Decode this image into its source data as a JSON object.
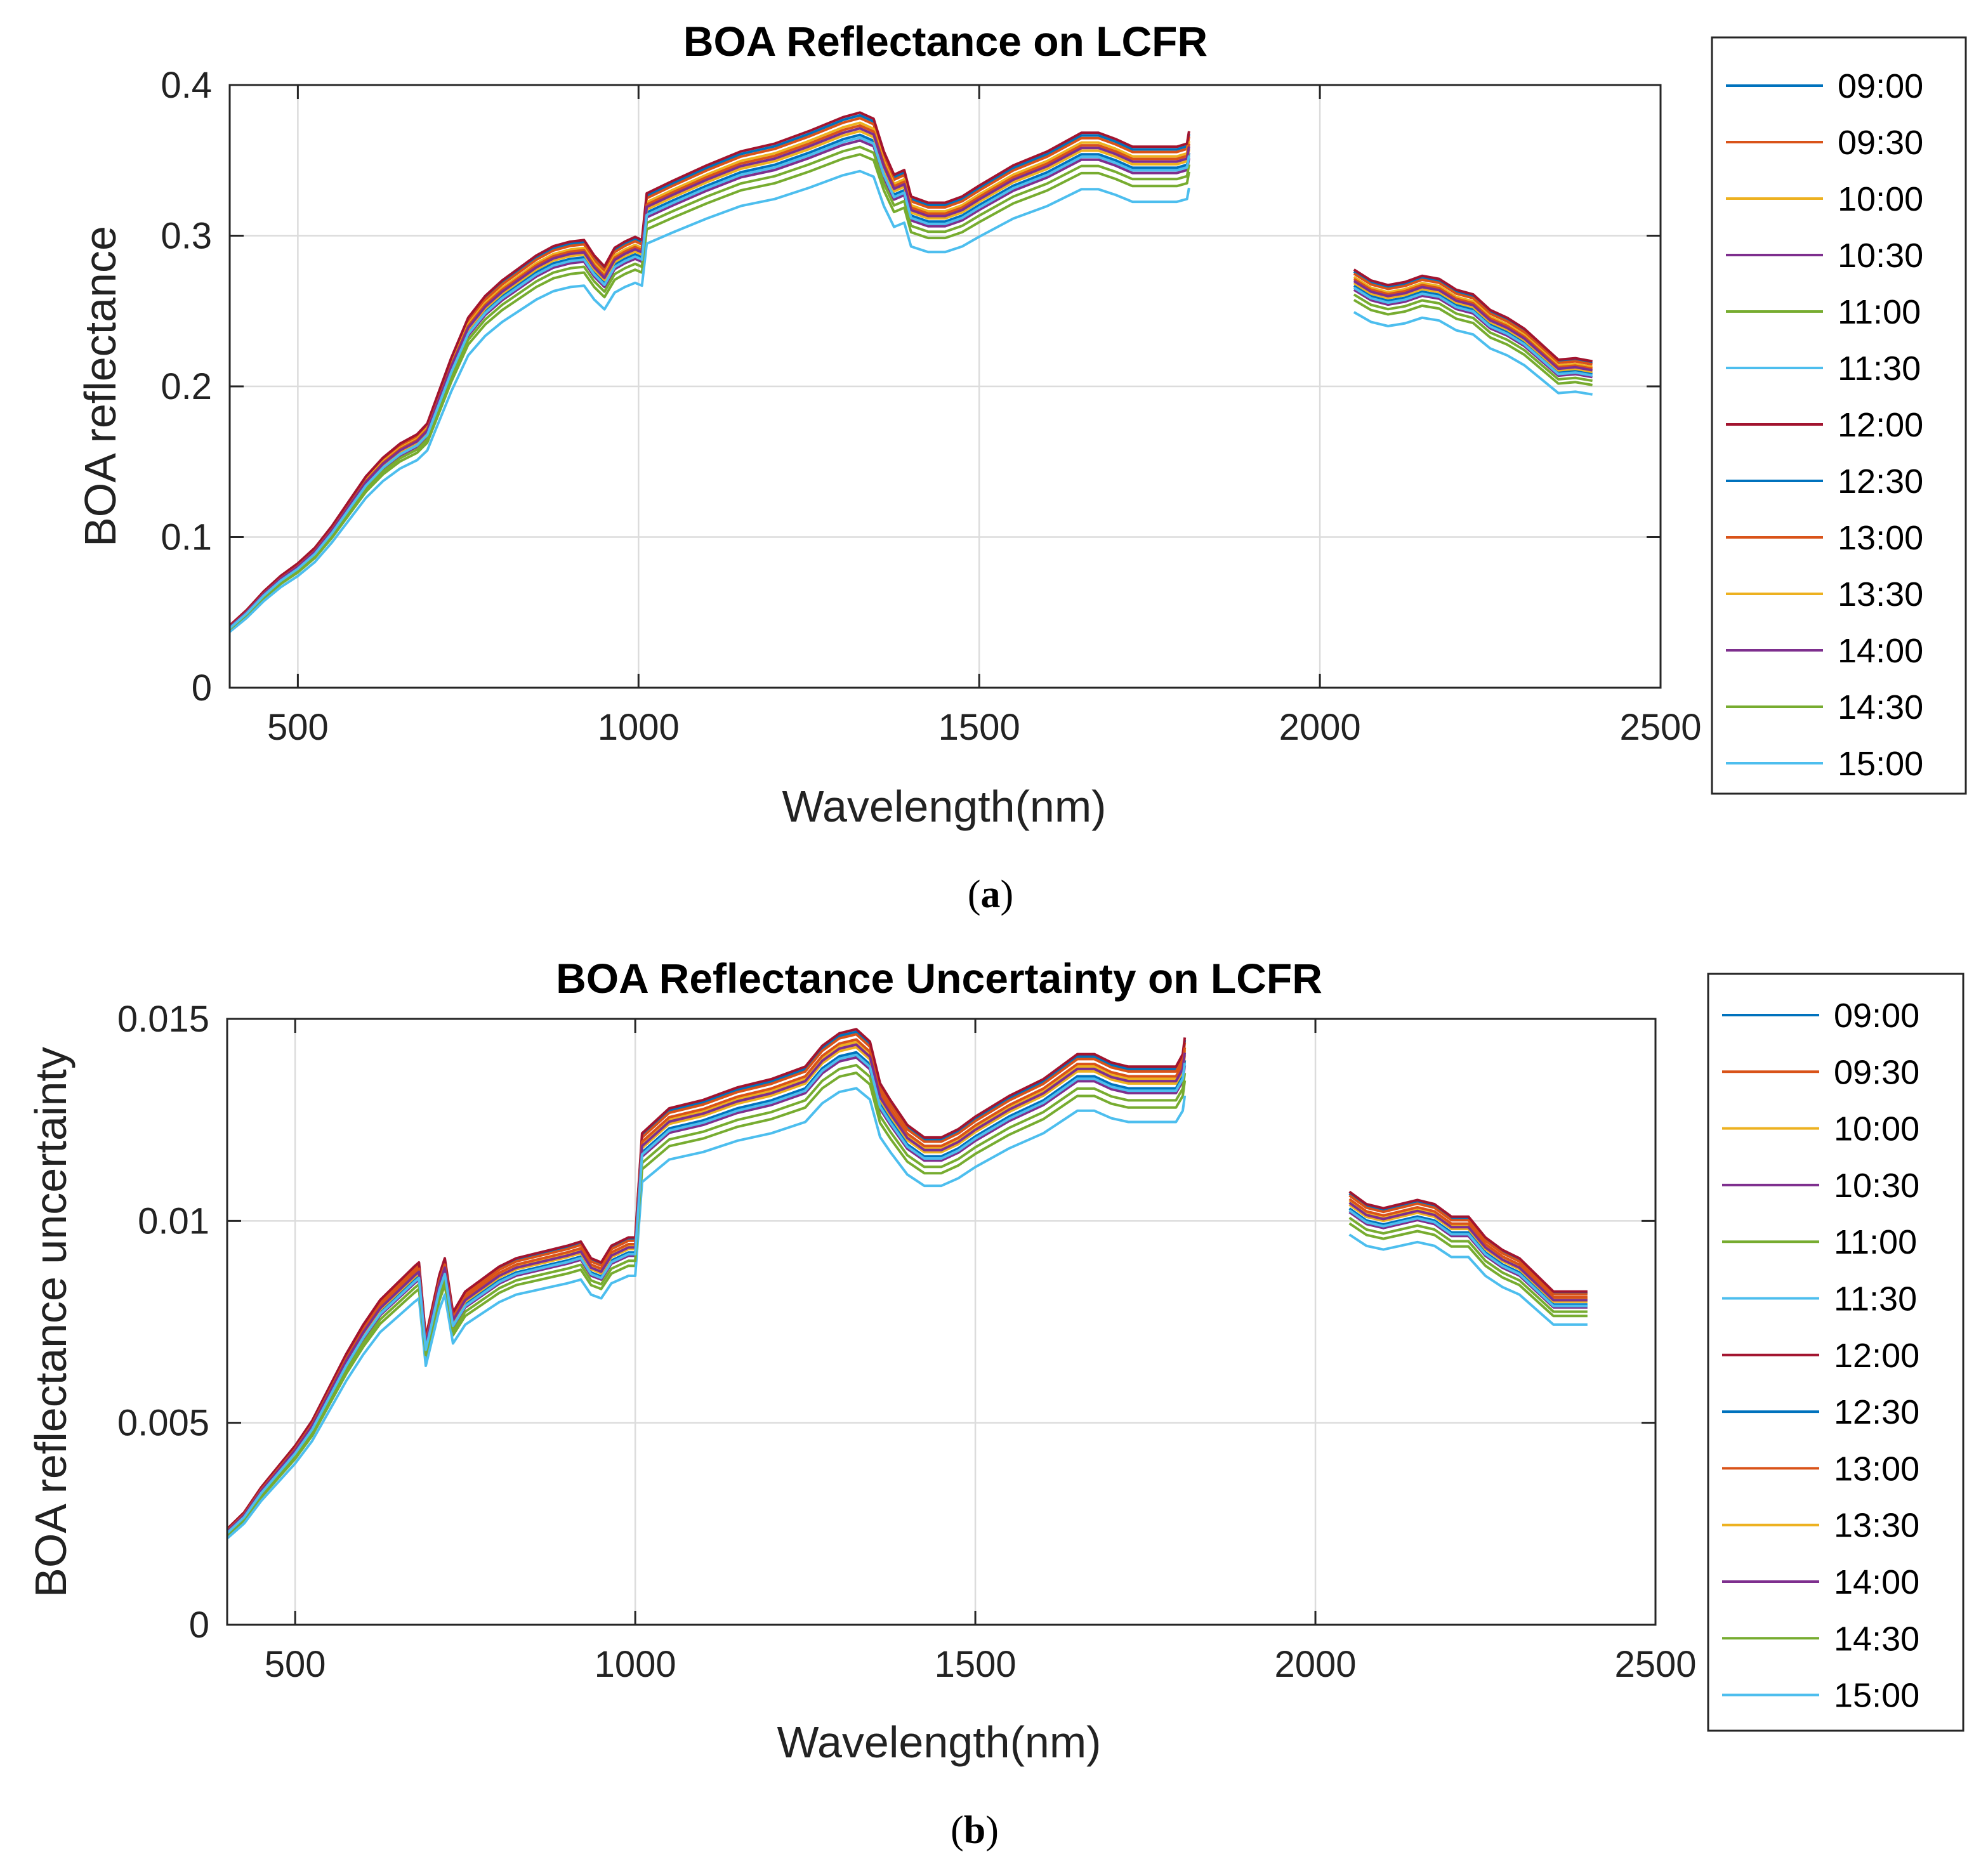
{
  "chart_data": [
    {
      "type": "line",
      "title": "BOA Reflectance on LCFR",
      "xlabel": "Wavelength(nm)",
      "ylabel": "BOA reflectance",
      "xlim": [
        400,
        2500
      ],
      "ylim": [
        0,
        0.4
      ],
      "xticks": [
        500,
        1000,
        1500,
        2000,
        2500
      ],
      "xtick_labels": [
        "500",
        "1000",
        "1500",
        "2000",
        "2500"
      ],
      "yticks": [
        0,
        0.1,
        0.2,
        0.3,
        0.4
      ],
      "ytick_labels": [
        "0",
        "0.1",
        "0.2",
        "0.3",
        "0.4"
      ],
      "grid": true,
      "legend_position": "outside-right",
      "caption_label": "a",
      "base_curve": [
        [
          400,
          0.04
        ],
        [
          425,
          0.05
        ],
        [
          450,
          0.062
        ],
        [
          475,
          0.072
        ],
        [
          500,
          0.08
        ],
        [
          525,
          0.09
        ],
        [
          550,
          0.104
        ],
        [
          575,
          0.12
        ],
        [
          600,
          0.136
        ],
        [
          625,
          0.148
        ],
        [
          650,
          0.157
        ],
        [
          675,
          0.163
        ],
        [
          690,
          0.17
        ],
        [
          700,
          0.182
        ],
        [
          725,
          0.212
        ],
        [
          750,
          0.238
        ],
        [
          775,
          0.252
        ],
        [
          800,
          0.262
        ],
        [
          825,
          0.27
        ],
        [
          850,
          0.278
        ],
        [
          875,
          0.284
        ],
        [
          900,
          0.287
        ],
        [
          920,
          0.288
        ],
        [
          935,
          0.278
        ],
        [
          950,
          0.271
        ],
        [
          965,
          0.283
        ],
        [
          980,
          0.287
        ],
        [
          995,
          0.29
        ],
        [
          1005,
          0.288
        ],
        [
          1012,
          0.318
        ],
        [
          1050,
          0.326
        ],
        [
          1100,
          0.336
        ],
        [
          1150,
          0.345
        ],
        [
          1200,
          0.35
        ],
        [
          1250,
          0.358
        ],
        [
          1300,
          0.367
        ],
        [
          1325,
          0.37
        ],
        [
          1345,
          0.366
        ],
        [
          1360,
          0.345
        ],
        [
          1375,
          0.33
        ],
        [
          1390,
          0.333
        ],
        [
          1400,
          0.316
        ],
        [
          1425,
          0.312
        ],
        [
          1450,
          0.312
        ],
        [
          1475,
          0.316
        ],
        [
          1500,
          0.323
        ],
        [
          1550,
          0.336
        ],
        [
          1600,
          0.345
        ],
        [
          1650,
          0.357
        ],
        [
          1675,
          0.357
        ],
        [
          1700,
          0.353
        ],
        [
          1725,
          0.348
        ],
        [
          1750,
          0.348
        ],
        [
          1790,
          0.348
        ],
        [
          1805,
          0.35
        ],
        [
          1808,
          0.358
        ]
      ],
      "base_curve_2": [
        [
          2050,
          0.269
        ],
        [
          2075,
          0.262
        ],
        [
          2100,
          0.259
        ],
        [
          2125,
          0.261
        ],
        [
          2150,
          0.265
        ],
        [
          2175,
          0.263
        ],
        [
          2200,
          0.256
        ],
        [
          2225,
          0.253
        ],
        [
          2250,
          0.243
        ],
        [
          2275,
          0.238
        ],
        [
          2300,
          0.231
        ],
        [
          2325,
          0.221
        ],
        [
          2350,
          0.211
        ],
        [
          2375,
          0.212
        ],
        [
          2400,
          0.21
        ]
      ],
      "series": [
        {
          "name": "09:00",
          "color": "#0072BD",
          "offset": 0.008
        },
        {
          "name": "09:30",
          "color": "#D95319",
          "offset": 0.0065
        },
        {
          "name": "10:00",
          "color": "#EDB120",
          "offset": 0.004
        },
        {
          "name": "10:30",
          "color": "#7E2F8E",
          "offset": -0.0055
        },
        {
          "name": "11:00",
          "color": "#77AC30",
          "offset": -0.013
        },
        {
          "name": "11:30",
          "color": "#4DBEEE",
          "offset": -0.022
        },
        {
          "name": "12:00",
          "color": "#A2142F",
          "offset": 0.0095
        },
        {
          "name": "12:30",
          "color": "#0072BD",
          "offset": -0.0025
        },
        {
          "name": "13:00",
          "color": "#D95319",
          "offset": 0.0025
        },
        {
          "name": "13:30",
          "color": "#EDB120",
          "offset": -0.0005
        },
        {
          "name": "14:00",
          "color": "#7E2F8E",
          "offset": 0.001
        },
        {
          "name": "14:30",
          "color": "#77AC30",
          "offset": -0.009
        },
        {
          "name": "15:00",
          "color": "#4DBEEE",
          "offset": -0.004
        }
      ]
    },
    {
      "type": "line",
      "title": "BOA Reflectance Uncertainty on LCFR",
      "xlabel": "Wavelength(nm)",
      "ylabel": "BOA reflectance uncertainty",
      "xlim": [
        400,
        2500
      ],
      "ylim": [
        0,
        0.015
      ],
      "xticks": [
        500,
        1000,
        1500,
        2000,
        2500
      ],
      "xtick_labels": [
        "500",
        "1000",
        "1500",
        "2000",
        "2500"
      ],
      "yticks": [
        0,
        0.005,
        0.01,
        0.015
      ],
      "ytick_labels": [
        "0",
        "0.005",
        "0.01",
        "0.015"
      ],
      "grid": true,
      "legend_position": "outside-right",
      "caption_label": "b",
      "base_curve": [
        [
          400,
          0.0023
        ],
        [
          425,
          0.0027
        ],
        [
          450,
          0.0033
        ],
        [
          475,
          0.0038
        ],
        [
          500,
          0.0043
        ],
        [
          525,
          0.0049
        ],
        [
          550,
          0.0057
        ],
        [
          575,
          0.0065
        ],
        [
          600,
          0.0072
        ],
        [
          625,
          0.0078
        ],
        [
          650,
          0.0082
        ],
        [
          675,
          0.0086
        ],
        [
          682,
          0.0087
        ],
        [
          692,
          0.0069
        ],
        [
          700,
          0.0075
        ],
        [
          712,
          0.0084
        ],
        [
          720,
          0.0088
        ],
        [
          732,
          0.0075
        ],
        [
          750,
          0.008
        ],
        [
          775,
          0.0083
        ],
        [
          800,
          0.0086
        ],
        [
          825,
          0.0088
        ],
        [
          850,
          0.0089
        ],
        [
          875,
          0.009
        ],
        [
          900,
          0.0091
        ],
        [
          920,
          0.0092
        ],
        [
          935,
          0.0088
        ],
        [
          950,
          0.0087
        ],
        [
          965,
          0.0091
        ],
        [
          990,
          0.0093
        ],
        [
          1000,
          0.0093
        ],
        [
          1010,
          0.0118
        ],
        [
          1050,
          0.0124
        ],
        [
          1100,
          0.0126
        ],
        [
          1150,
          0.0129
        ],
        [
          1200,
          0.0131
        ],
        [
          1250,
          0.0134
        ],
        [
          1275,
          0.0139
        ],
        [
          1300,
          0.0142
        ],
        [
          1325,
          0.0143
        ],
        [
          1345,
          0.014
        ],
        [
          1360,
          0.013
        ],
        [
          1375,
          0.0126
        ],
        [
          1400,
          0.012
        ],
        [
          1425,
          0.0117
        ],
        [
          1450,
          0.0117
        ],
        [
          1475,
          0.0119
        ],
        [
          1500,
          0.0122
        ],
        [
          1550,
          0.0127
        ],
        [
          1600,
          0.0131
        ],
        [
          1650,
          0.0137
        ],
        [
          1675,
          0.0137
        ],
        [
          1700,
          0.0135
        ],
        [
          1725,
          0.0134
        ],
        [
          1750,
          0.0134
        ],
        [
          1795,
          0.0134
        ],
        [
          1805,
          0.0137
        ],
        [
          1808,
          0.0141
        ]
      ],
      "base_curve_2": [
        [
          2050,
          0.0104
        ],
        [
          2075,
          0.0101
        ],
        [
          2100,
          0.01
        ],
        [
          2125,
          0.0101
        ],
        [
          2150,
          0.0102
        ],
        [
          2175,
          0.0101
        ],
        [
          2200,
          0.0098
        ],
        [
          2225,
          0.0098
        ],
        [
          2250,
          0.0093
        ],
        [
          2275,
          0.009
        ],
        [
          2300,
          0.0088
        ],
        [
          2325,
          0.0084
        ],
        [
          2350,
          0.008
        ],
        [
          2375,
          0.008
        ],
        [
          2400,
          0.008
        ]
      ],
      "series": [
        {
          "name": "09:00",
          "color": "#0072BD",
          "offset": 0.0003
        },
        {
          "name": "09:30",
          "color": "#D95319",
          "offset": 0.00025
        },
        {
          "name": "10:00",
          "color": "#EDB120",
          "offset": 0.0001
        },
        {
          "name": "10:30",
          "color": "#7E2F8E",
          "offset": -0.0002
        },
        {
          "name": "11:00",
          "color": "#77AC30",
          "offset": -0.0005
        },
        {
          "name": "11:30",
          "color": "#4DBEEE",
          "offset": -0.0008
        },
        {
          "name": "12:00",
          "color": "#A2142F",
          "offset": 0.00035
        },
        {
          "name": "12:30",
          "color": "#0072BD",
          "offset": -0.0001
        },
        {
          "name": "13:00",
          "color": "#D95319",
          "offset": 0.00015
        },
        {
          "name": "13:30",
          "color": "#EDB120",
          "offset": 0.0
        },
        {
          "name": "14:00",
          "color": "#7E2F8E",
          "offset": 5e-05
        },
        {
          "name": "14:30",
          "color": "#77AC30",
          "offset": -0.00035
        },
        {
          "name": "15:00",
          "color": "#4DBEEE",
          "offset": -0.00015
        }
      ]
    }
  ]
}
